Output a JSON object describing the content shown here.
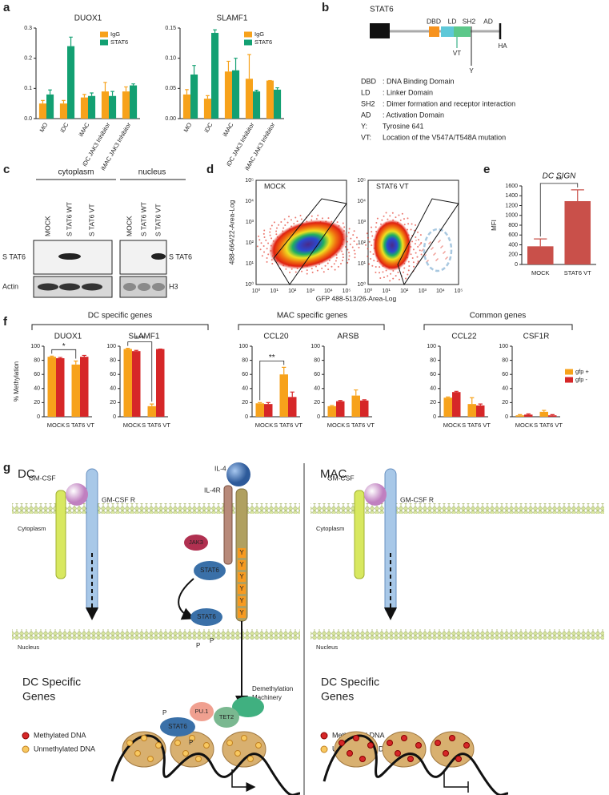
{
  "panel_labels": [
    "a",
    "b",
    "c",
    "d",
    "e",
    "f",
    "g"
  ],
  "chart_data": [
    {
      "type": "bar",
      "title": "DUOX1",
      "categories": [
        "MO",
        "iDC",
        "iMAC",
        "iDC JAK3 Inhibitor",
        "iMAC JAK3 Inhibitor"
      ],
      "category_colors": [
        "#c0392b",
        "#2e5aa8",
        "#c0392b",
        "#2e5aa8",
        "#c0392b"
      ],
      "series": [
        {
          "name": "IgG",
          "color": "#f7a21b",
          "values": [
            0.05,
            0.05,
            0.07,
            0.09,
            0.09
          ],
          "errors": [
            0.01,
            0.01,
            0.01,
            0.03,
            0.015
          ]
        },
        {
          "name": "STAT6",
          "color": "#13a072",
          "values": [
            0.08,
            0.24,
            0.075,
            0.075,
            0.11
          ],
          "errors": [
            0.015,
            0.03,
            0.01,
            0.015,
            0.005
          ]
        }
      ],
      "ylim": [
        0,
        0.3
      ],
      "yticks": [
        {
          "value": 0,
          "label": "0.0"
        },
        {
          "value": 0.1,
          "label": "0.1"
        },
        {
          "value": 0.2,
          "label": "0.2"
        },
        {
          "value": 0.3,
          "label": "0.3"
        }
      ],
      "legend": "upper right"
    },
    {
      "type": "bar",
      "title": "SLAMF1",
      "categories": [
        "MO",
        "iDC",
        "iMAC",
        "iDC JAK3 Inhibitor",
        "iMAC JAK3 Inhibitor"
      ],
      "category_colors": [
        "#c0392b",
        "#2e5aa8",
        "#c0392b",
        "#2e5aa8",
        "#c0392b"
      ],
      "series": [
        {
          "name": "IgG",
          "color": "#f7a21b",
          "values": [
            0.04,
            0.033,
            0.078,
            0.066,
            0.063
          ],
          "errors": [
            0.008,
            0.005,
            0.017,
            0.04,
            0
          ]
        },
        {
          "name": "STAT6",
          "color": "#13a072",
          "values": [
            0.073,
            0.142,
            0.08,
            0.045,
            0.048
          ],
          "errors": [
            0.015,
            0.005,
            0.02,
            0.002,
            0.003
          ]
        }
      ],
      "ylim": [
        0,
        0.15
      ],
      "yticks": [
        {
          "value": 0,
          "label": "0.00"
        },
        {
          "value": 0.05,
          "label": "0.05"
        },
        {
          "value": 0.1,
          "label": "0.10"
        },
        {
          "value": 0.15,
          "label": "0.15"
        }
      ],
      "legend": "upper right"
    },
    {
      "type": "bar",
      "title": "DC SIGN",
      "y_label": "MFI",
      "categories": [
        "MOCK",
        "STAT6 VT"
      ],
      "values": [
        370,
        1290
      ],
      "errors": [
        150,
        230
      ],
      "color": "#c9504a",
      "ylim": [
        0,
        1600
      ],
      "yticks": [
        0,
        200,
        400,
        600,
        800,
        1000,
        1200,
        1400,
        1600
      ],
      "significance": "**"
    },
    {
      "type": "bar",
      "title": "DUOX1",
      "y_label": "% Methylation",
      "categories": [
        "MOCK",
        "S TAT6 VT"
      ],
      "series": [
        {
          "color": "#f7a21b",
          "values": [
            85,
            74
          ],
          "errors": [
            1,
            5
          ]
        },
        {
          "color": "#d62728",
          "values": [
            83,
            85
          ],
          "errors": [
            1,
            2
          ]
        }
      ],
      "ylim": [
        0,
        100
      ],
      "yticks": [
        0,
        20,
        40,
        60,
        80,
        100
      ],
      "significance": "*"
    },
    {
      "type": "bar",
      "title": "SLAMF1",
      "categories": [
        "MOCK",
        "S TAT6 VT"
      ],
      "series": [
        {
          "color": "#f7a21b",
          "values": [
            96,
            15
          ],
          "errors": [
            1,
            3
          ]
        },
        {
          "color": "#d62728",
          "values": [
            93,
            96
          ],
          "errors": [
            1,
            0
          ]
        }
      ],
      "ylim": [
        0,
        100
      ],
      "yticks": [
        0,
        20,
        40,
        60,
        80,
        100
      ],
      "significance": "***"
    },
    {
      "type": "bar",
      "title": "CCL20",
      "categories": [
        "MOCK",
        "S TAT6 VT"
      ],
      "series": [
        {
          "color": "#f7a21b",
          "values": [
            19,
            60
          ],
          "errors": [
            1,
            10
          ]
        },
        {
          "color": "#d62728",
          "values": [
            18,
            28
          ],
          "errors": [
            2,
            7
          ]
        }
      ],
      "ylim": [
        0,
        100
      ],
      "yticks": [
        0,
        20,
        40,
        60,
        80,
        100
      ],
      "significance": "**"
    },
    {
      "type": "bar",
      "title": "ARSB",
      "categories": [
        "MOCK",
        "S TAT6 VT"
      ],
      "series": [
        {
          "color": "#f7a21b",
          "values": [
            15,
            30
          ],
          "errors": [
            1,
            8
          ]
        },
        {
          "color": "#d62728",
          "values": [
            22,
            23
          ],
          "errors": [
            1,
            1
          ]
        }
      ],
      "ylim": [
        0,
        100
      ],
      "yticks": [
        0,
        20,
        40,
        60,
        80,
        100
      ]
    },
    {
      "type": "bar",
      "title": "CCL22",
      "categories": [
        "MOCK",
        "S TAT6 VT"
      ],
      "series": [
        {
          "color": "#f7a21b",
          "values": [
            27,
            18
          ],
          "errors": [
            1,
            9
          ]
        },
        {
          "color": "#d62728",
          "values": [
            35,
            16
          ],
          "errors": [
            1,
            2
          ]
        }
      ],
      "ylim": [
        0,
        100
      ],
      "yticks": [
        0,
        20,
        40,
        60,
        80,
        100
      ]
    },
    {
      "type": "bar",
      "title": "CSF1R",
      "categories": [
        "MOCK",
        "S TAT6 VT"
      ],
      "series": [
        {
          "name": "gfp +",
          "color": "#f7a21b",
          "values": [
            2,
            7
          ],
          "errors": [
            1,
            2
          ]
        },
        {
          "name": "gfp -",
          "color": "#d62728",
          "values": [
            3,
            2
          ],
          "errors": [
            1,
            1
          ]
        }
      ],
      "ylim": [
        0,
        100
      ],
      "yticks": [
        0,
        20,
        40,
        60,
        80,
        100
      ],
      "legend": "upper right"
    }
  ],
  "panel_b": {
    "title": "STAT6",
    "domains": [
      "DBD",
      "LD",
      "SH2",
      "AD"
    ],
    "vt": "VT",
    "y": "Y",
    "ha": "HA",
    "legend": [
      [
        "DBD",
        ": DNA Binding Domain"
      ],
      [
        "LD",
        ": Linker Domain"
      ],
      [
        "SH2",
        ": Dimer formation and receptor interaction"
      ],
      [
        "AD",
        ": Activation Domain"
      ],
      [
        "Y:",
        "Tyrosine 641"
      ],
      [
        "VT:",
        "Location of the V547A/T548A mutation"
      ]
    ]
  },
  "panel_c": {
    "groups": [
      "cytoplasm",
      "nucleus"
    ],
    "lanes": [
      "MOCK",
      "S TAT6 WT",
      "S TAT6 VT"
    ],
    "rows_left": [
      "S TAT6",
      "Actin"
    ],
    "rows_right": [
      "S TAT6",
      "H3"
    ]
  },
  "panel_d": {
    "plots": [
      "MOCK",
      "STAT6 VT"
    ],
    "x_label": "GFP 488-513/26-Area-Log",
    "y_label": "488-664/22-Area-Log",
    "ticks": [
      "10⁰",
      "10¹",
      "10²",
      "10³",
      "10⁴",
      "10⁵"
    ]
  },
  "panel_f": {
    "groups": [
      "DC specific genes",
      "MAC specific genes",
      "Common genes"
    ]
  },
  "panel_g": {
    "left_title": "DC",
    "right_title": "MAC",
    "gm_csf": "GM-CSF",
    "gm_csf_r": "GM-CSF R",
    "il4": "IL-4",
    "il4r": "IL-4R",
    "cytoplasm": "Cytoplasm",
    "nucleus": "Nucleus",
    "jak3": "JAK3",
    "stat6": "STAT6",
    "tyrosine": "Y",
    "phospho": "P",
    "genes_title": [
      "DC Specific",
      "Genes"
    ],
    "demethylation": [
      "Demethylation",
      "Machinery"
    ],
    "pu1": "PU.1",
    "tet2": "TET2",
    "legend": [
      "Methylated DNA",
      "Unmethylated DNA"
    ]
  }
}
